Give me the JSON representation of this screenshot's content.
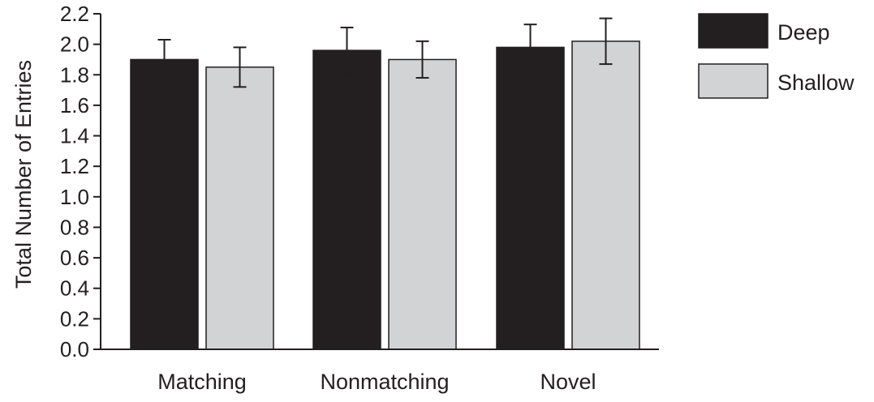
{
  "chart_data": {
    "type": "bar",
    "categories": [
      "Matching",
      "Nonmatching",
      "Novel"
    ],
    "series": [
      {
        "name": "Deep",
        "values": [
          1.9,
          1.96,
          1.98
        ],
        "errors": [
          0.13,
          0.15,
          0.15
        ],
        "color": "#231f20"
      },
      {
        "name": "Shallow",
        "values": [
          1.85,
          1.9,
          2.02
        ],
        "errors": [
          0.13,
          0.12,
          0.15
        ],
        "color": "#d1d3d4"
      }
    ],
    "title": "",
    "xlabel": "",
    "ylabel": "Total Number of Entries",
    "ylim": [
      0,
      2.2
    ],
    "yticks": [
      "0.0",
      "0.2",
      "0.4",
      "0.6",
      "0.8",
      "1.0",
      "1.2",
      "1.4",
      "1.6",
      "1.8",
      "2.0",
      "2.2"
    ],
    "grid": false,
    "legend_position": "top-right",
    "error_bars": true
  }
}
